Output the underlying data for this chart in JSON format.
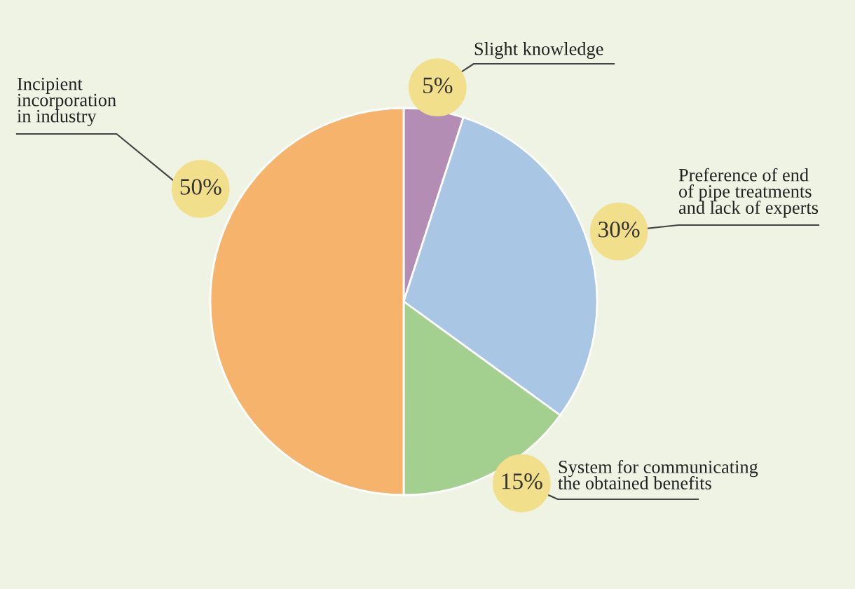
{
  "chart_data": {
    "type": "pie",
    "categories": [
      "Slight knowledge",
      "Preference of end\nof pipe treatments\nand lack of experts",
      "System for communicating\nthe obtained benefits",
      "Incipient\nincorporation\nin industry"
    ],
    "values": [
      5,
      30,
      15,
      50
    ],
    "colors": [
      "#b48db4",
      "#a9c7e4",
      "#a3d08e",
      "#f5b36c"
    ],
    "value_labels": [
      "5%",
      "30%",
      "15%",
      "50%"
    ]
  }
}
